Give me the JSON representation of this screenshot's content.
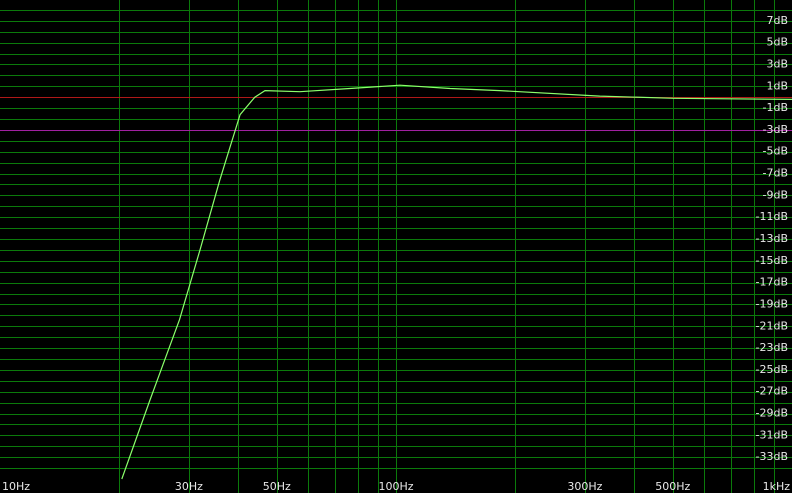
{
  "chart_data": {
    "type": "line",
    "xscale": "log",
    "xlim": [
      10,
      1000
    ],
    "ylim": [
      -35,
      9
    ],
    "xticks": [
      {
        "value": 10,
        "label": "10Hz"
      },
      {
        "value": 30,
        "label": "30Hz"
      },
      {
        "value": 50,
        "label": "50Hz"
      },
      {
        "value": 100,
        "label": "100Hz"
      },
      {
        "value": 300,
        "label": "300Hz"
      },
      {
        "value": 500,
        "label": "500Hz"
      },
      {
        "value": 1000,
        "label": "1kHz"
      }
    ],
    "xgrid": [
      20,
      30,
      40,
      50,
      60,
      70,
      80,
      90,
      100,
      200,
      300,
      400,
      500,
      600,
      700,
      800,
      900
    ],
    "yticks": [
      {
        "value": 7,
        "label": "7dB"
      },
      {
        "value": 5,
        "label": "5dB"
      },
      {
        "value": 3,
        "label": "3dB"
      },
      {
        "value": 1,
        "label": "1dB"
      },
      {
        "value": -1,
        "label": "-1dB"
      },
      {
        "value": -3,
        "label": "-3dB"
      },
      {
        "value": -5,
        "label": "-5dB"
      },
      {
        "value": -7,
        "label": "-7dB"
      },
      {
        "value": -9,
        "label": "-9dB"
      },
      {
        "value": -11,
        "label": "-11dB"
      },
      {
        "value": -13,
        "label": "-13dB"
      },
      {
        "value": -15,
        "label": "-15dB"
      },
      {
        "value": -17,
        "label": "-17dB"
      },
      {
        "value": -19,
        "label": "-19dB"
      },
      {
        "value": -21,
        "label": "-21dB"
      },
      {
        "value": -23,
        "label": "-23dB"
      },
      {
        "value": -25,
        "label": "-25dB"
      },
      {
        "value": -27,
        "label": "-27dB"
      },
      {
        "value": -29,
        "label": "-29dB"
      },
      {
        "value": -31,
        "label": "-31dB"
      },
      {
        "value": -33,
        "label": "-33dB"
      }
    ],
    "ygrid": [
      8,
      7,
      6,
      5,
      4,
      3,
      2,
      1,
      0,
      -1,
      -2,
      -3,
      -4,
      -5,
      -6,
      -7,
      -8,
      -9,
      -10,
      -11,
      -12,
      -13,
      -14,
      -15,
      -16,
      -17,
      -18,
      -19,
      -20,
      -21,
      -22,
      -23,
      -24,
      -25,
      -26,
      -27,
      -28,
      -29,
      -30,
      -31,
      -32,
      -33,
      -34
    ],
    "grid_color": "#0b7a0b",
    "reference_lines": [
      {
        "value": 0,
        "color": "#b01818"
      },
      {
        "value": -3,
        "color": "#a020a0"
      }
    ],
    "series": [
      {
        "color": "#8cff6c",
        "x": [
          20.3,
          23.9,
          28.4,
          32.0,
          35.9,
          40.4,
          44.0,
          46.7,
          57.2,
          76.5,
          102.3,
          137,
          183,
          327,
          505,
          1000
        ],
        "values": [
          -35,
          -27.8,
          -20.4,
          -14,
          -7.6,
          -1.6,
          0,
          0.6,
          0.5,
          0.8,
          1.1,
          0.8,
          0.6,
          0.1,
          -0.1,
          -0.2
        ]
      }
    ]
  }
}
